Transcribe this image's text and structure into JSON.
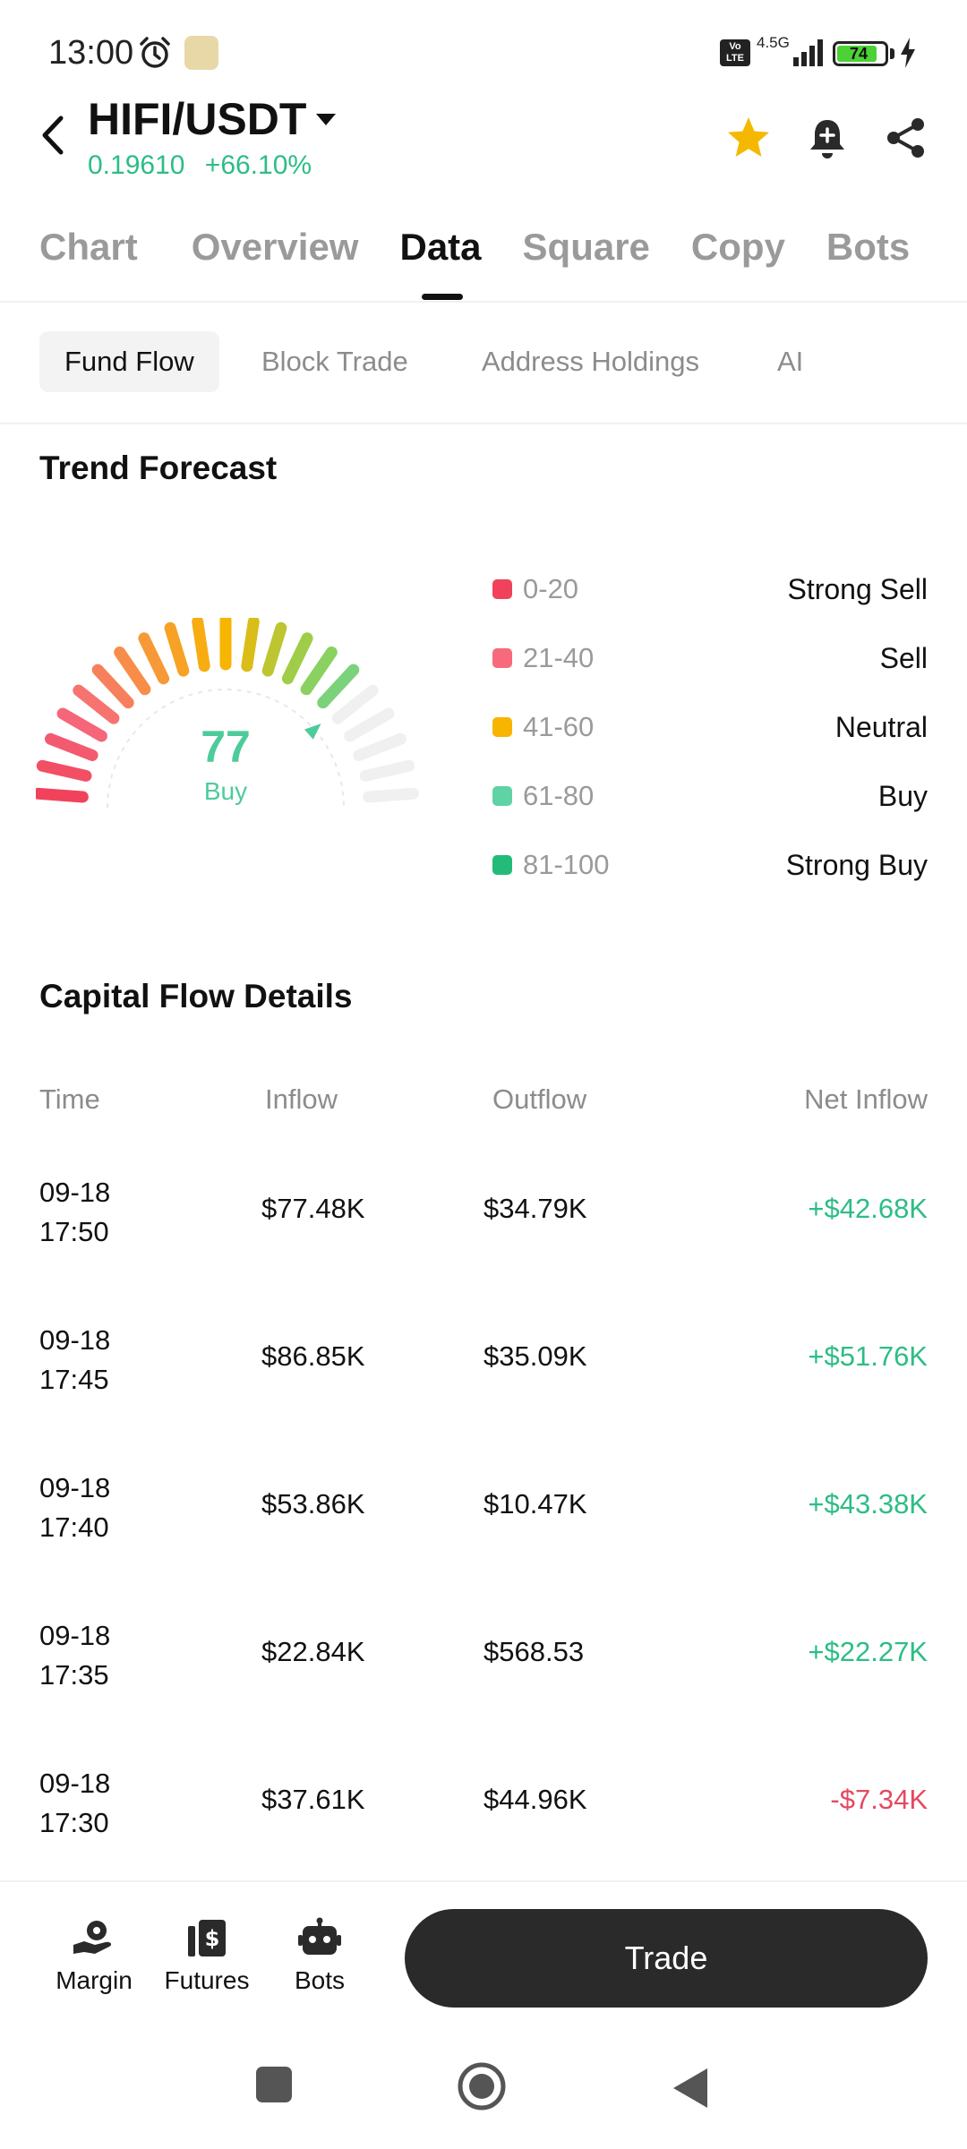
{
  "status_bar": {
    "time": "13:00",
    "network": "4.5G",
    "volte": "Vo LTE",
    "battery": "74"
  },
  "header": {
    "pair": "HIFI/USDT",
    "price": "0.19610",
    "change": "+66.10%",
    "icons": [
      "back-icon",
      "caret-down-icon",
      "star-icon",
      "bell-plus-icon",
      "share-icon"
    ],
    "colors": {
      "up": "#2dbd85",
      "down": "#e5495f",
      "star": "#f5b800"
    }
  },
  "main_tabs": [
    {
      "label": "Chart",
      "active": false
    },
    {
      "label": "Overview",
      "active": false
    },
    {
      "label": "Data",
      "active": true
    },
    {
      "label": "Square",
      "active": false
    },
    {
      "label": "Copy",
      "active": false
    },
    {
      "label": "Bots",
      "active": false
    }
  ],
  "sub_tabs": [
    {
      "label": "Fund Flow",
      "active": true
    },
    {
      "label": "Block Trade",
      "active": false
    },
    {
      "label": "Address Holdings",
      "active": false
    },
    {
      "label": "AI",
      "active": false
    }
  ],
  "trend": {
    "title": "Trend Forecast",
    "value": "77",
    "label": "Buy",
    "score": 77,
    "legend": [
      {
        "range": "0-20",
        "name": "Strong Sell",
        "color": "#f0435b"
      },
      {
        "range": "21-40",
        "name": "Sell",
        "color": "#f66a7c"
      },
      {
        "range": "41-60",
        "name": "Neutral",
        "color": "#f7b500"
      },
      {
        "range": "61-80",
        "name": "Buy",
        "color": "#5fd3a4"
      },
      {
        "range": "81-100",
        "name": "Strong Buy",
        "color": "#22bb7a"
      }
    ]
  },
  "capital_flow": {
    "title": "Capital Flow Details",
    "headers": {
      "time": "Time",
      "inflow": "Inflow",
      "outflow": "Outflow",
      "net": "Net Inflow"
    },
    "rows": [
      {
        "date": "09-18",
        "time": "17:50",
        "inflow": "$77.48K",
        "outflow": "$34.79K",
        "net": "+$42.68K",
        "positive": true
      },
      {
        "date": "09-18",
        "time": "17:45",
        "inflow": "$86.85K",
        "outflow": "$35.09K",
        "net": "+$51.76K",
        "positive": true
      },
      {
        "date": "09-18",
        "time": "17:40",
        "inflow": "$53.86K",
        "outflow": "$10.47K",
        "net": "+$43.38K",
        "positive": true
      },
      {
        "date": "09-18",
        "time": "17:35",
        "inflow": "$22.84K",
        "outflow": "$568.53",
        "net": "+$22.27K",
        "positive": true
      },
      {
        "date": "09-18",
        "time": "17:30",
        "inflow": "$37.61K",
        "outflow": "$44.96K",
        "net": "-$7.34K",
        "positive": false
      }
    ]
  },
  "bottom_bar": {
    "items": [
      {
        "label": "Margin",
        "icon": "margin-icon"
      },
      {
        "label": "Futures",
        "icon": "futures-icon"
      },
      {
        "label": "Bots",
        "icon": "robot-icon"
      }
    ],
    "trade_label": "Trade"
  }
}
